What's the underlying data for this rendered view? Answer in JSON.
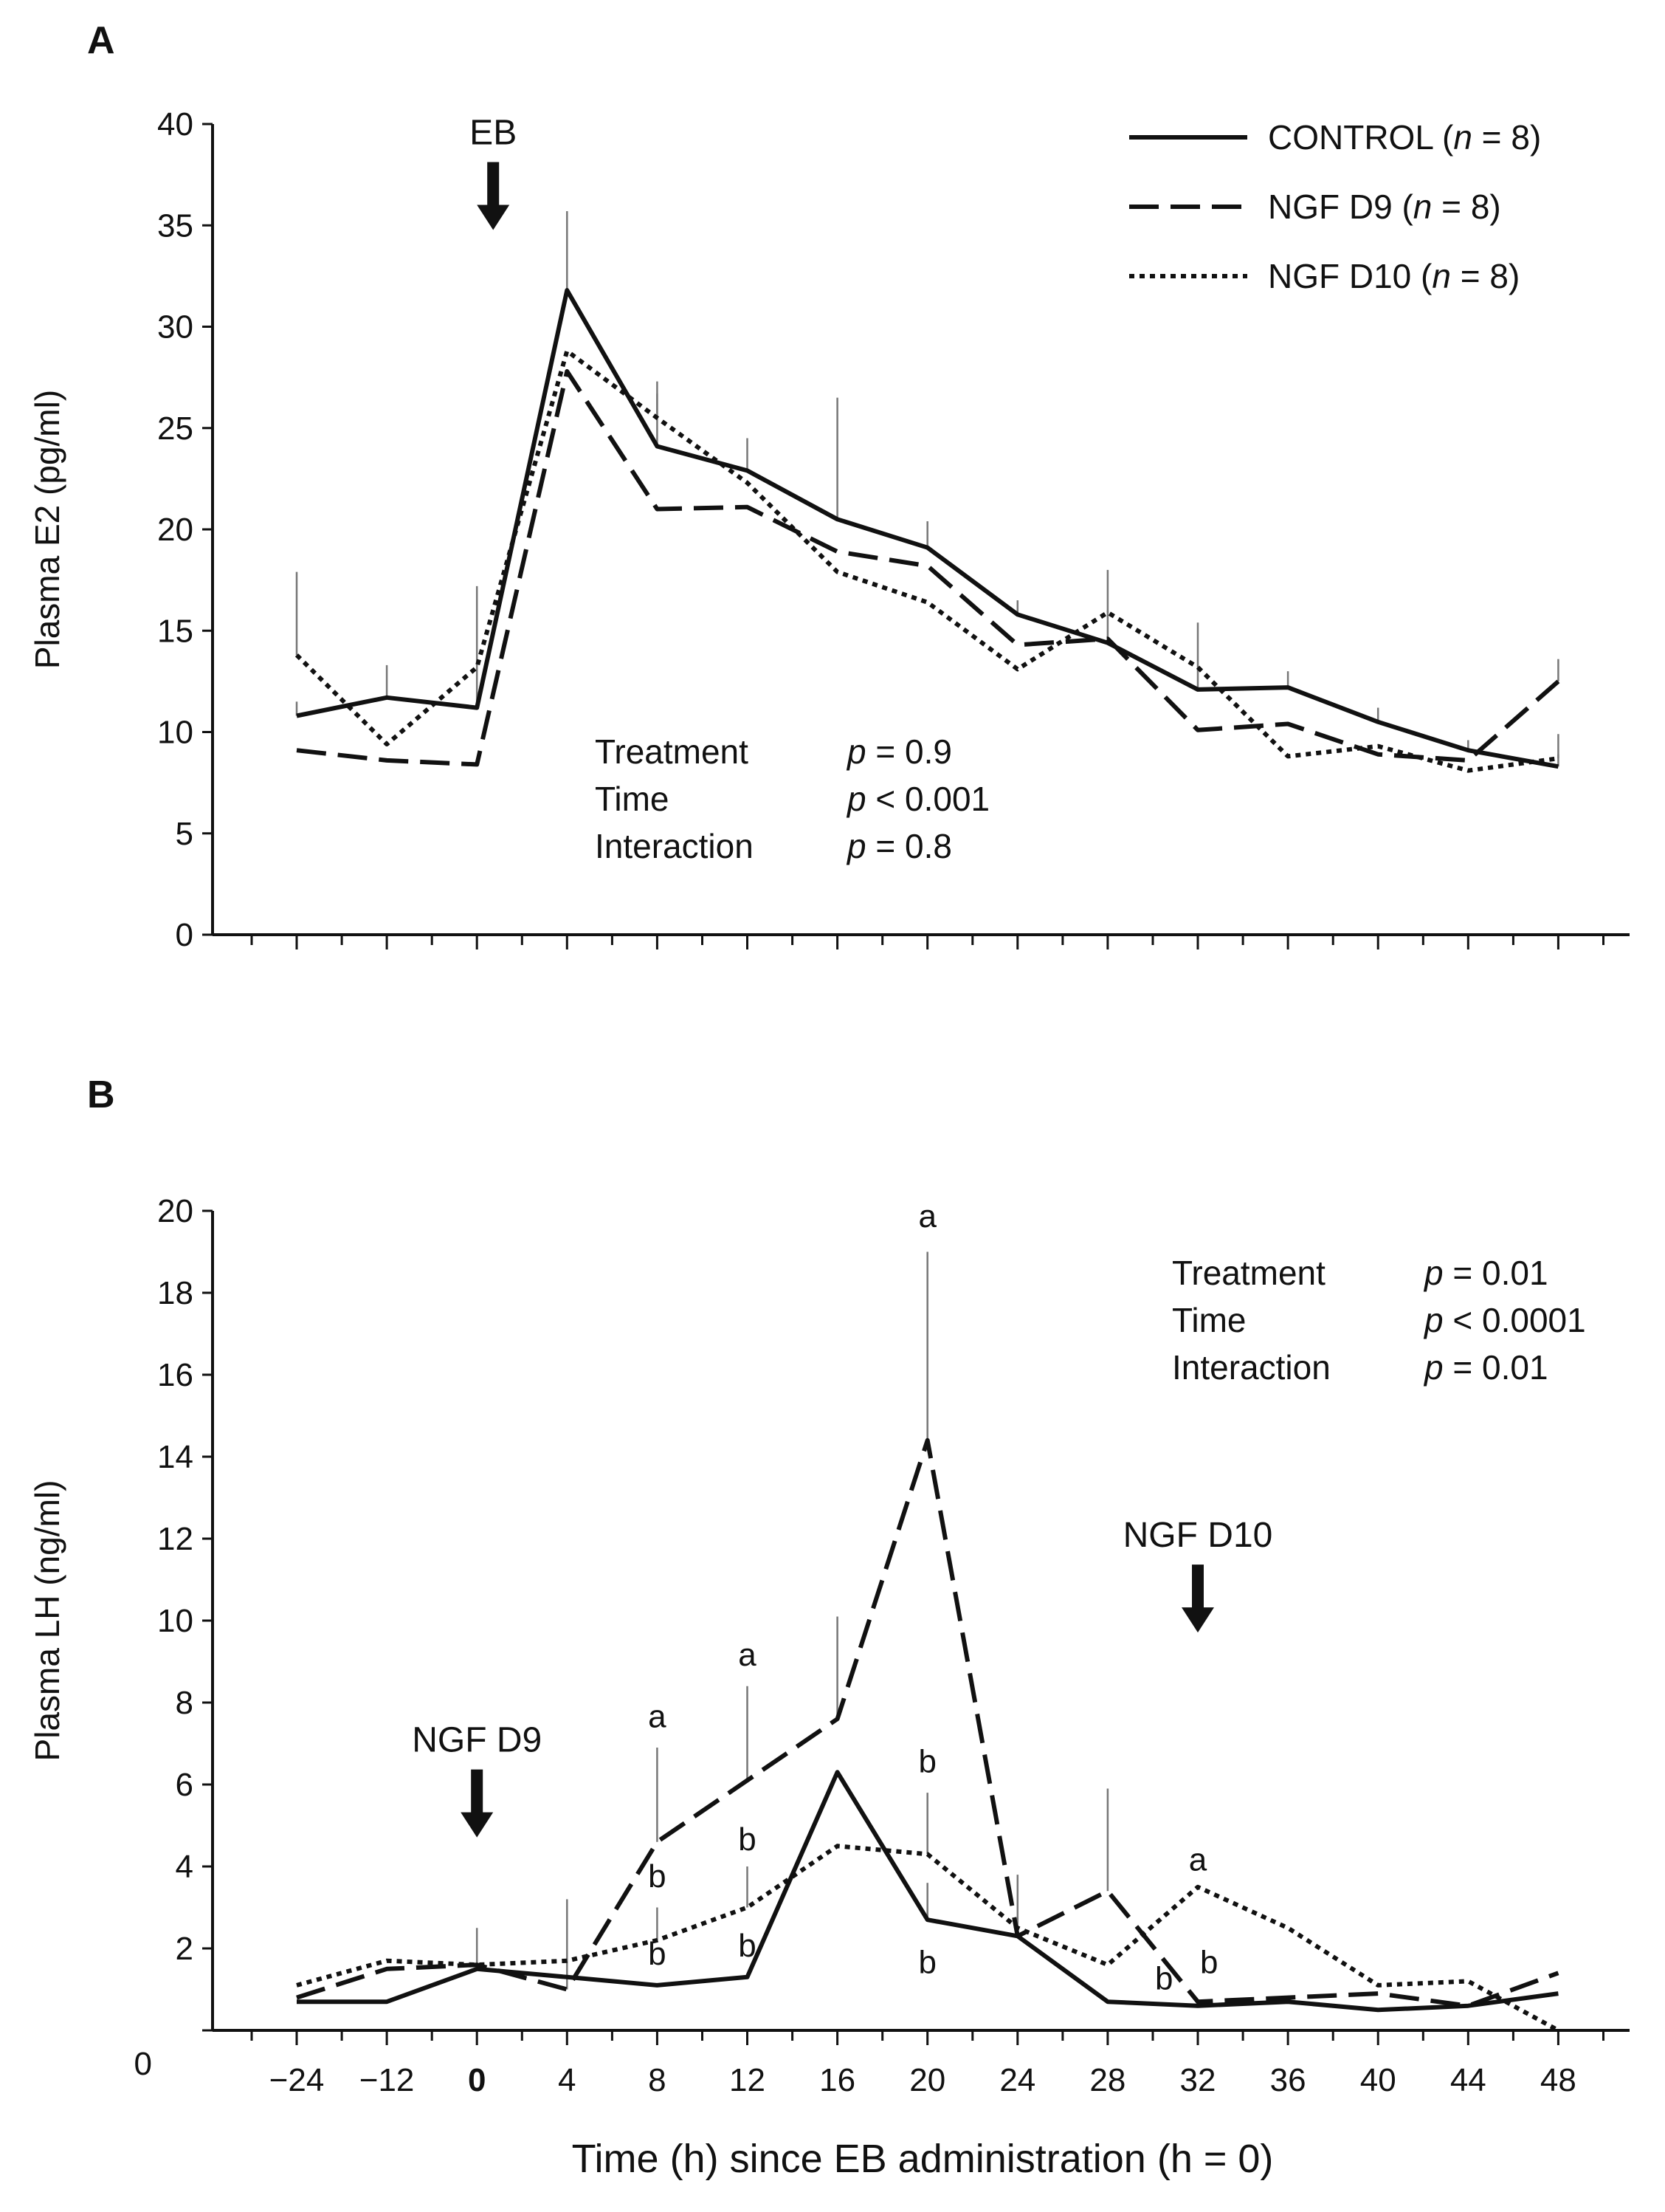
{
  "chart_data": [
    {
      "panel": "A",
      "type": "line",
      "ylabel": "Plasma E2 (pg/ml)",
      "xlabel": "",
      "ylim": [
        0,
        40
      ],
      "yticks": [
        0,
        5,
        10,
        15,
        20,
        25,
        30,
        35,
        40
      ],
      "x": [
        -24,
        -12,
        0,
        4,
        8,
        12,
        16,
        20,
        24,
        28,
        32,
        36,
        40,
        44,
        48
      ],
      "series": [
        {
          "name": "CONTROL",
          "n": "8",
          "style": "solid",
          "values": [
            10.8,
            11.7,
            11.2,
            31.8,
            24.1,
            22.9,
            20.5,
            19.1,
            15.8,
            14.4,
            12.1,
            12.2,
            10.5,
            9.1,
            8.3
          ],
          "err": [
            11.5,
            13.3,
            17.2,
            35.7,
            26.7,
            24.5,
            26.5,
            20.4,
            16.5,
            16.0,
            15.4,
            13.0,
            11.2,
            9.6,
            8.9
          ]
        },
        {
          "name": "NGF D9",
          "n": "8",
          "style": "dashed",
          "values": [
            9.1,
            8.6,
            8.4,
            27.8,
            21.0,
            21.1,
            18.9,
            18.2,
            14.3,
            14.6,
            10.1,
            10.4,
            8.9,
            8.6,
            12.5
          ],
          "err": [
            null,
            null,
            null,
            null,
            null,
            null,
            null,
            null,
            null,
            null,
            null,
            null,
            null,
            null,
            13.6
          ]
        },
        {
          "name": "NGF D10",
          "n": "8",
          "style": "dotted",
          "values": [
            13.8,
            9.4,
            13.2,
            28.8,
            25.5,
            22.3,
            17.9,
            16.4,
            13.1,
            15.9,
            13.2,
            8.8,
            9.3,
            8.1,
            8.7
          ],
          "err": [
            17.9,
            null,
            null,
            null,
            27.3,
            null,
            null,
            null,
            null,
            18.0,
            null,
            null,
            null,
            null,
            9.9
          ]
        }
      ],
      "stats": [
        {
          "label": "Treatment",
          "p": "p",
          "value": " = 0.9"
        },
        {
          "label": "Time",
          "p": "p",
          "value": " < 0.001"
        },
        {
          "label": "Interaction",
          "p": "p",
          "value": " = 0.8"
        }
      ],
      "annotations": [
        {
          "text": "EB",
          "x": 0,
          "y": 39.0
        }
      ]
    },
    {
      "panel": "B",
      "type": "line",
      "ylabel": "Plasma LH (ng/ml)",
      "xlabel": "Time (h) since EB administration (h = 0)",
      "ylim": [
        0,
        20
      ],
      "yticks": [
        0,
        2,
        4,
        6,
        8,
        10,
        12,
        14,
        16,
        18,
        20
      ],
      "x": [
        -24,
        -12,
        0,
        4,
        8,
        12,
        16,
        20,
        24,
        28,
        32,
        36,
        40,
        44,
        48
      ],
      "xticklabels": [
        "−24",
        "−12",
        "0",
        "4",
        "8",
        "12",
        "16",
        "20",
        "24",
        "28",
        "32",
        "36",
        "40",
        "44",
        "48"
      ],
      "series": [
        {
          "name": "CONTROL",
          "style": "solid",
          "values": [
            0.7,
            0.7,
            1.5,
            1.3,
            1.1,
            1.3,
            6.3,
            2.7,
            2.3,
            0.7,
            0.6,
            0.7,
            0.5,
            0.6,
            0.9
          ],
          "err": [
            null,
            null,
            null,
            null,
            null,
            null,
            null,
            3.6,
            null,
            null,
            null,
            null,
            null,
            null,
            null
          ]
        },
        {
          "name": "NGF D9",
          "style": "dashed",
          "values": [
            0.8,
            1.5,
            1.6,
            1.0,
            4.6,
            6.1,
            7.6,
            14.4,
            2.3,
            3.4,
            0.7,
            0.8,
            0.9,
            0.6,
            1.4
          ],
          "err": [
            null,
            null,
            null,
            3.2,
            6.9,
            8.4,
            10.1,
            19.0,
            3.8,
            5.9,
            null,
            null,
            null,
            null,
            null
          ]
        },
        {
          "name": "NGF D10",
          "style": "dotted",
          "values": [
            1.1,
            1.7,
            1.6,
            1.7,
            2.2,
            3.0,
            4.5,
            4.3,
            2.5,
            1.6,
            3.5,
            2.5,
            1.1,
            1.2,
            0.0
          ],
          "err": [
            null,
            null,
            2.5,
            null,
            3.0,
            4.0,
            null,
            5.8,
            null,
            null,
            null,
            null,
            null,
            null,
            null
          ]
        }
      ],
      "stats": [
        {
          "label": "Treatment",
          "p": "p",
          "value": " = 0.01"
        },
        {
          "label": "Time",
          "p": "p",
          "value": " < 0.0001"
        },
        {
          "label": "Interaction",
          "p": "p",
          "value": " = 0.01"
        }
      ],
      "letters": [
        {
          "text": "a",
          "x": 8,
          "y": 7.4
        },
        {
          "text": "b",
          "x": 8,
          "y": 3.5
        },
        {
          "text": "b",
          "x": 8,
          "y": 1.6
        },
        {
          "text": "a",
          "x": 12,
          "y": 8.9
        },
        {
          "text": "b",
          "x": 12,
          "y": 4.4
        },
        {
          "text": "b",
          "x": 12,
          "y": 1.8
        },
        {
          "text": "a",
          "x": 20,
          "y": 19.6
        },
        {
          "text": "b",
          "x": 20,
          "y": 6.3
        },
        {
          "text": "b",
          "x": 20,
          "y": 1.4
        },
        {
          "text": "a",
          "x": 32,
          "y": 3.9
        },
        {
          "text": "b",
          "x": 30.5,
          "y": 1.0
        },
        {
          "text": "b",
          "x": 32.5,
          "y": 1.4
        }
      ],
      "annotations": [
        {
          "text": "NGF D9",
          "x": 0,
          "y": 6.8
        },
        {
          "text": "NGF D10",
          "x": 32,
          "y": 11.8
        }
      ]
    }
  ],
  "panel_letters": [
    "A",
    "B"
  ]
}
